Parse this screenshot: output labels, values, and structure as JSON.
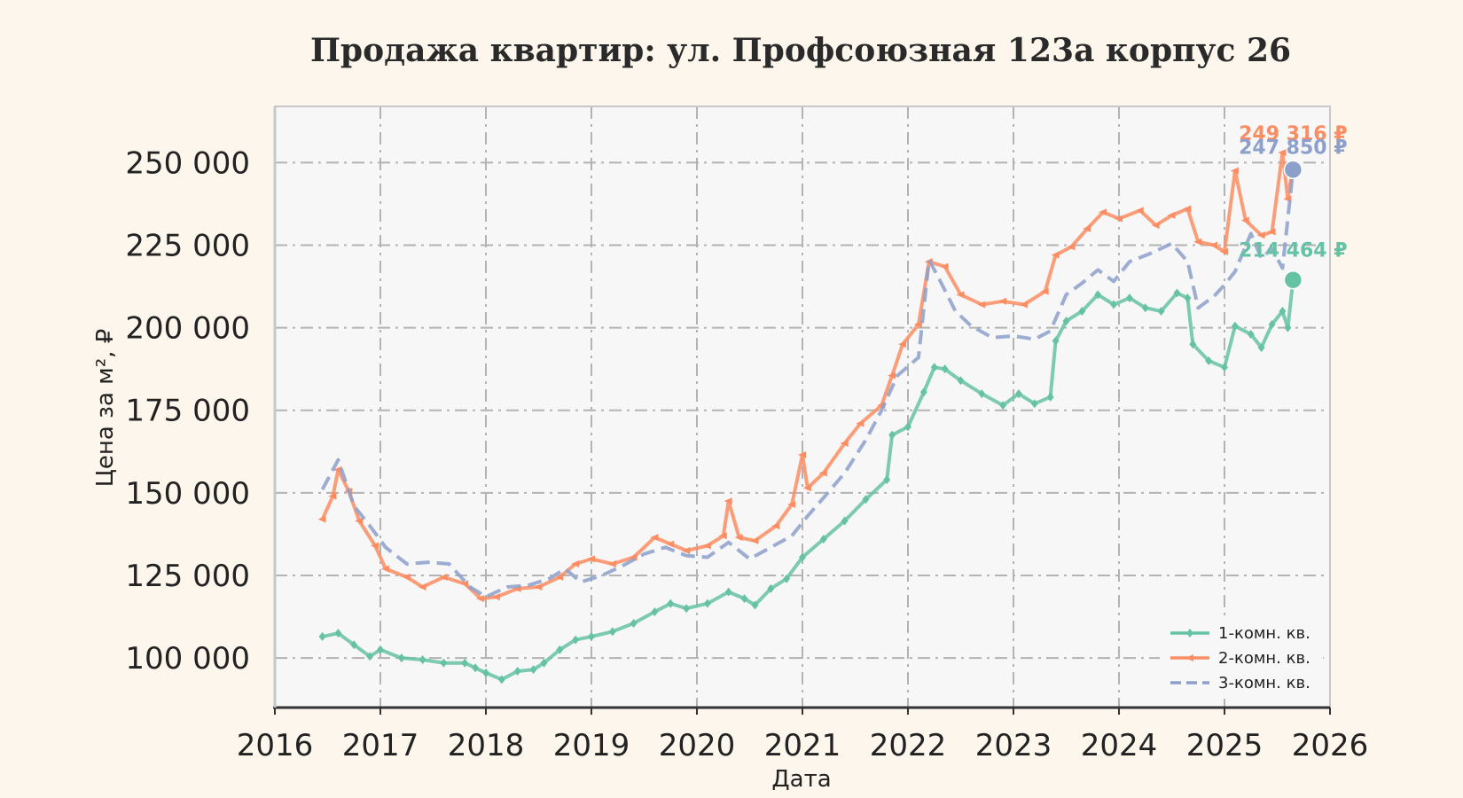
{
  "chart_data": {
    "type": "line",
    "title": "Продажа квартир: ул. Профсоюзная 123а корпус 26",
    "xlabel": "Дата",
    "ylabel": "Цена за м², ₽",
    "xlim": [
      2016,
      2026
    ],
    "ylim": [
      85000,
      267000
    ],
    "x_ticks": [
      "2016",
      "2017",
      "2018",
      "2019",
      "2020",
      "2021",
      "2022",
      "2023",
      "2024",
      "2025",
      "2026"
    ],
    "y_ticks": [
      "100 000",
      "125 000",
      "150 000",
      "175 000",
      "200 000",
      "225 000",
      "250 000"
    ],
    "y_tick_values": [
      100000,
      125000,
      150000,
      175000,
      200000,
      225000,
      250000
    ],
    "grid": true,
    "legend_position": "bottom-right",
    "series": [
      {
        "name": "1-комн. кв.",
        "color": "#66c2a5",
        "style": "solid",
        "marker": "diamond",
        "end_label": "214 464 ₽",
        "end_value": 214464,
        "points": [
          [
            2016.45,
            106500
          ],
          [
            2016.6,
            107500
          ],
          [
            2016.75,
            104000
          ],
          [
            2016.9,
            100500
          ],
          [
            2017.0,
            102500
          ],
          [
            2017.2,
            100000
          ],
          [
            2017.4,
            99500
          ],
          [
            2017.6,
            98500
          ],
          [
            2017.8,
            98500
          ],
          [
            2017.9,
            97000
          ],
          [
            2018.0,
            95500
          ],
          [
            2018.15,
            93500
          ],
          [
            2018.3,
            96000
          ],
          [
            2018.45,
            96500
          ],
          [
            2018.55,
            98500
          ],
          [
            2018.7,
            102500
          ],
          [
            2018.85,
            105500
          ],
          [
            2019.0,
            106500
          ],
          [
            2019.2,
            108000
          ],
          [
            2019.4,
            110500
          ],
          [
            2019.6,
            114000
          ],
          [
            2019.75,
            116500
          ],
          [
            2019.9,
            115000
          ],
          [
            2020.1,
            116500
          ],
          [
            2020.3,
            120000
          ],
          [
            2020.45,
            118000
          ],
          [
            2020.55,
            116000
          ],
          [
            2020.7,
            121000
          ],
          [
            2020.85,
            124000
          ],
          [
            2021.0,
            130500
          ],
          [
            2021.2,
            136000
          ],
          [
            2021.4,
            141500
          ],
          [
            2021.6,
            148000
          ],
          [
            2021.8,
            154000
          ],
          [
            2021.85,
            167500
          ],
          [
            2022.0,
            170000
          ],
          [
            2022.15,
            180500
          ],
          [
            2022.25,
            188000
          ],
          [
            2022.35,
            187500
          ],
          [
            2022.5,
            184000
          ],
          [
            2022.7,
            180000
          ],
          [
            2022.9,
            176500
          ],
          [
            2023.05,
            180000
          ],
          [
            2023.2,
            177000
          ],
          [
            2023.35,
            179000
          ],
          [
            2023.4,
            196000
          ],
          [
            2023.5,
            202000
          ],
          [
            2023.65,
            205000
          ],
          [
            2023.8,
            210000
          ],
          [
            2023.95,
            207000
          ],
          [
            2024.1,
            209000
          ],
          [
            2024.25,
            206000
          ],
          [
            2024.4,
            205000
          ],
          [
            2024.55,
            210500
          ],
          [
            2024.65,
            209000
          ],
          [
            2024.7,
            195000
          ],
          [
            2024.85,
            190000
          ],
          [
            2025.0,
            188000
          ],
          [
            2025.1,
            200500
          ],
          [
            2025.25,
            198000
          ],
          [
            2025.35,
            194000
          ],
          [
            2025.45,
            201000
          ],
          [
            2025.55,
            205000
          ],
          [
            2025.6,
            200000
          ],
          [
            2025.65,
            214464
          ]
        ]
      },
      {
        "name": "2-комн. кв.",
        "color": "#fc8d62",
        "style": "solid",
        "marker": "triangle",
        "end_label": "249 316 ₽",
        "end_value": 249316,
        "points": [
          [
            2016.45,
            142000
          ],
          [
            2016.55,
            149000
          ],
          [
            2016.6,
            157000
          ],
          [
            2016.7,
            150500
          ],
          [
            2016.8,
            141500
          ],
          [
            2016.95,
            134000
          ],
          [
            2017.05,
            127000
          ],
          [
            2017.25,
            124500
          ],
          [
            2017.4,
            121500
          ],
          [
            2017.6,
            124500
          ],
          [
            2017.8,
            122500
          ],
          [
            2017.95,
            118000
          ],
          [
            2018.1,
            118500
          ],
          [
            2018.3,
            121000
          ],
          [
            2018.5,
            121500
          ],
          [
            2018.7,
            124500
          ],
          [
            2018.85,
            128500
          ],
          [
            2019.0,
            130000
          ],
          [
            2019.2,
            128500
          ],
          [
            2019.4,
            130500
          ],
          [
            2019.6,
            136500
          ],
          [
            2019.75,
            134500
          ],
          [
            2019.9,
            132500
          ],
          [
            2020.1,
            134000
          ],
          [
            2020.25,
            137000
          ],
          [
            2020.3,
            147500
          ],
          [
            2020.4,
            136500
          ],
          [
            2020.55,
            135500
          ],
          [
            2020.75,
            140000
          ],
          [
            2020.9,
            146500
          ],
          [
            2021.0,
            161500
          ],
          [
            2021.05,
            151500
          ],
          [
            2021.2,
            156000
          ],
          [
            2021.4,
            165000
          ],
          [
            2021.55,
            171000
          ],
          [
            2021.75,
            176500
          ],
          [
            2021.85,
            185500
          ],
          [
            2021.95,
            195000
          ],
          [
            2022.1,
            201000
          ],
          [
            2022.2,
            220000
          ],
          [
            2022.35,
            218500
          ],
          [
            2022.5,
            210000
          ],
          [
            2022.7,
            207000
          ],
          [
            2022.9,
            208000
          ],
          [
            2023.1,
            207000
          ],
          [
            2023.3,
            211000
          ],
          [
            2023.4,
            222000
          ],
          [
            2023.55,
            224500
          ],
          [
            2023.7,
            230000
          ],
          [
            2023.85,
            235000
          ],
          [
            2024.0,
            233000
          ],
          [
            2024.2,
            235500
          ],
          [
            2024.35,
            231000
          ],
          [
            2024.5,
            234000
          ],
          [
            2024.65,
            236000
          ],
          [
            2024.75,
            226000
          ],
          [
            2024.9,
            225000
          ],
          [
            2025.0,
            223000
          ],
          [
            2025.1,
            247500
          ],
          [
            2025.2,
            232500
          ],
          [
            2025.35,
            228000
          ],
          [
            2025.45,
            229000
          ],
          [
            2025.55,
            253000
          ],
          [
            2025.6,
            239000
          ],
          [
            2025.65,
            249316
          ]
        ]
      },
      {
        "name": "3-комн. кв.",
        "color": "#8da0cb",
        "style": "dashed",
        "marker": "none",
        "end_label": "247 850 ₽",
        "end_value": 247850,
        "points": [
          [
            2016.45,
            151000
          ],
          [
            2016.6,
            160000
          ],
          [
            2016.75,
            146000
          ],
          [
            2016.9,
            140000
          ],
          [
            2017.05,
            133500
          ],
          [
            2017.25,
            128500
          ],
          [
            2017.45,
            129000
          ],
          [
            2017.65,
            128500
          ],
          [
            2017.85,
            121500
          ],
          [
            2018.0,
            118500
          ],
          [
            2018.2,
            121500
          ],
          [
            2018.4,
            122000
          ],
          [
            2018.6,
            124000
          ],
          [
            2018.75,
            127000
          ],
          [
            2018.9,
            123000
          ],
          [
            2019.1,
            125000
          ],
          [
            2019.3,
            128000
          ],
          [
            2019.5,
            131500
          ],
          [
            2019.7,
            133500
          ],
          [
            2019.9,
            131000
          ],
          [
            2020.1,
            130500
          ],
          [
            2020.3,
            135000
          ],
          [
            2020.5,
            130000
          ],
          [
            2020.7,
            133500
          ],
          [
            2020.9,
            137000
          ],
          [
            2021.05,
            143000
          ],
          [
            2021.2,
            148500
          ],
          [
            2021.4,
            156000
          ],
          [
            2021.6,
            166000
          ],
          [
            2021.75,
            175000
          ],
          [
            2021.9,
            185500
          ],
          [
            2022.1,
            191000
          ],
          [
            2022.2,
            220500
          ],
          [
            2022.3,
            214500
          ],
          [
            2022.45,
            205000
          ],
          [
            2022.6,
            200500
          ],
          [
            2022.8,
            197000
          ],
          [
            2023.0,
            197500
          ],
          [
            2023.2,
            196500
          ],
          [
            2023.35,
            199000
          ],
          [
            2023.5,
            210000
          ],
          [
            2023.65,
            213500
          ],
          [
            2023.8,
            217500
          ],
          [
            2023.95,
            214000
          ],
          [
            2024.1,
            220000
          ],
          [
            2024.3,
            222500
          ],
          [
            2024.5,
            225500
          ],
          [
            2024.65,
            220000
          ],
          [
            2024.75,
            206000
          ],
          [
            2024.9,
            209500
          ],
          [
            2025.0,
            213000
          ],
          [
            2025.1,
            217000
          ],
          [
            2025.25,
            228500
          ],
          [
            2025.35,
            221000
          ],
          [
            2025.45,
            224000
          ],
          [
            2025.55,
            218000
          ],
          [
            2025.65,
            247850
          ]
        ]
      }
    ]
  }
}
